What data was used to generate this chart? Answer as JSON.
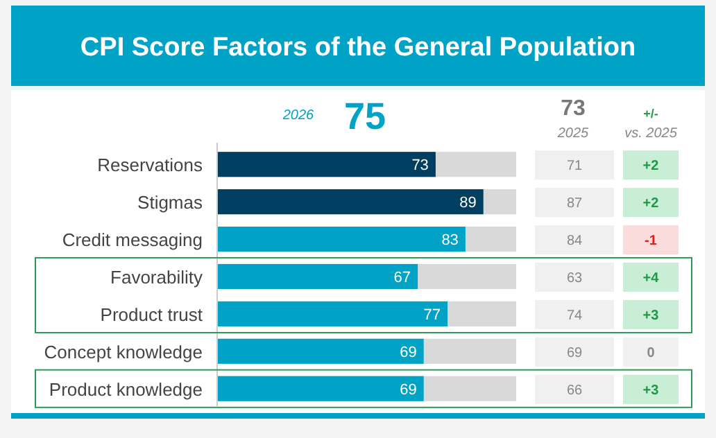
{
  "chart_data": {
    "type": "bar",
    "orientation": "horizontal",
    "title": "CPI Score Factors of the General Population",
    "categories": [
      "Reservations",
      "Stigmas",
      "Credit messaging",
      "Favorability",
      "Product trust",
      "Concept knowledge",
      "Product knowledge"
    ],
    "values": [
      73,
      89,
      83,
      67,
      77,
      69,
      69
    ],
    "colors": [
      "#003f5f",
      "#003f5f",
      "#00a3c6",
      "#00a3c6",
      "#00a3c6",
      "#00a3c6",
      "#00a3c6"
    ],
    "xlim": [
      0,
      100
    ],
    "tick_labels": "y",
    "data_labels": true,
    "annotations": [
      "2026",
      "75",
      "73",
      "2025",
      "+/-",
      "vs. 2025",
      "71",
      "87",
      "84",
      "63",
      "74",
      "69",
      "66",
      "+2",
      "+2",
      "-1",
      "+4",
      "+3",
      "0",
      "+3"
    ]
  }
}
